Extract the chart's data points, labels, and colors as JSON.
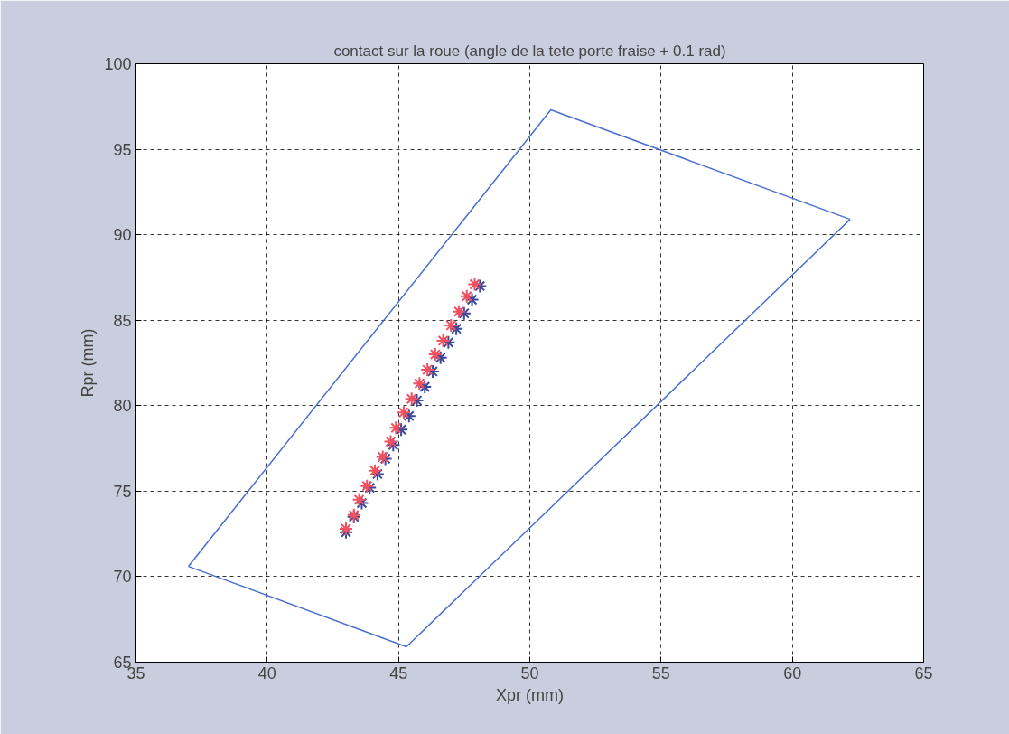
{
  "chart_data": {
    "type": "scatter",
    "title": "contact sur la roue (angle de la tete porte fraise + 0.1 rad)",
    "xlabel": "Xpr (mm)",
    "ylabel": "Rpr (mm)",
    "xlim": [
      35,
      65
    ],
    "ylim": [
      65,
      100
    ],
    "xticks": [
      35,
      40,
      45,
      50,
      55,
      60,
      65
    ],
    "yticks": [
      65,
      70,
      75,
      80,
      85,
      90,
      95,
      100
    ],
    "grid": true,
    "series": [
      {
        "type": "line",
        "color": "#4a6fd0",
        "marker": "none",
        "x": [
          37.0,
          45.3,
          62.2
        ],
        "values": [
          70.6,
          65.9,
          90.9
        ]
      },
      {
        "type": "line",
        "color": "#4a6fd0",
        "marker": "none",
        "x": [
          37.0,
          50.8,
          62.2
        ],
        "values": [
          70.6,
          97.3,
          90.9
        ]
      },
      {
        "color": "#3a4a9a",
        "marker": "cross",
        "x": [
          43.0,
          43.3,
          43.6,
          43.9,
          44.2,
          44.5,
          44.8,
          45.1,
          45.4,
          45.7,
          46.0,
          46.3,
          46.6,
          46.9,
          47.2,
          47.5,
          47.8,
          48.1
        ],
        "values": [
          72.6,
          73.5,
          74.3,
          75.2,
          76.0,
          76.9,
          77.7,
          78.6,
          79.4,
          80.3,
          81.1,
          82.0,
          82.8,
          83.7,
          84.5,
          85.4,
          86.2,
          87.0
        ]
      },
      {
        "color": "#f05060",
        "marker": "cross",
        "x": [
          43.0,
          43.3,
          43.5,
          43.8,
          44.1,
          44.4,
          44.7,
          44.9,
          45.2,
          45.5,
          45.8,
          46.1,
          46.4,
          46.7,
          47.0,
          47.3,
          47.6,
          47.9
        ],
        "values": [
          72.8,
          73.6,
          74.5,
          75.3,
          76.2,
          77.0,
          77.9,
          78.7,
          79.6,
          80.4,
          81.3,
          82.1,
          83.0,
          83.8,
          84.7,
          85.5,
          86.4,
          87.1
        ]
      }
    ]
  }
}
